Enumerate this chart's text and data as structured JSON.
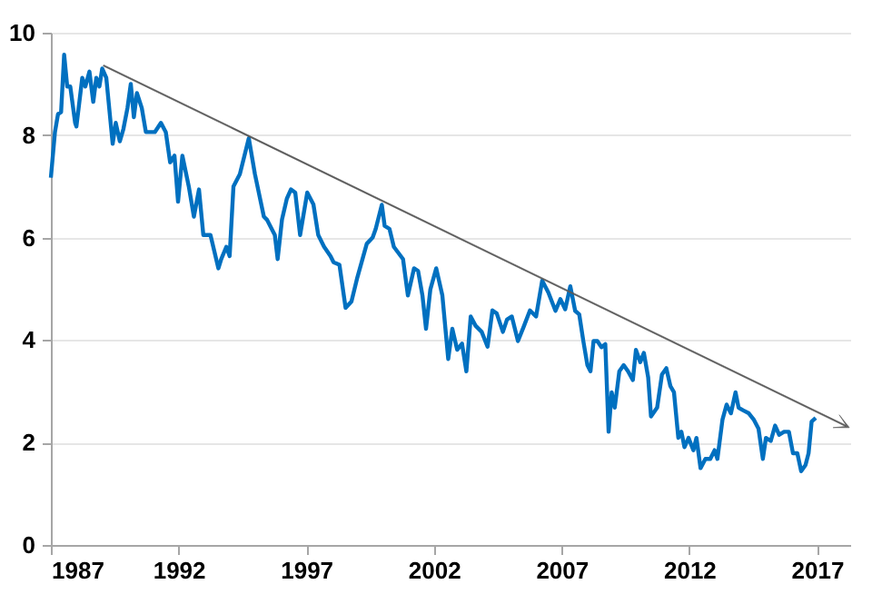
{
  "chart_data": {
    "type": "line",
    "xlim": [
      1987,
      2018.3
    ],
    "xticks": [
      1987,
      1992,
      1997,
      2002,
      2007,
      2012,
      2017
    ],
    "ylim": [
      0,
      10
    ],
    "yticks": [
      0,
      2,
      4,
      6,
      8,
      10
    ],
    "grid": "y",
    "series": [
      {
        "color": "#0070c0",
        "x": [
          1987.0,
          1987.16,
          1987.28,
          1987.4,
          1987.52,
          1987.64,
          1987.76,
          1987.95,
          1988.0,
          1988.23,
          1988.35,
          1988.51,
          1988.66,
          1988.78,
          1988.9,
          1989.01,
          1989.17,
          1989.42,
          1989.54,
          1989.7,
          1989.84,
          1990.0,
          1990.13,
          1990.25,
          1990.37,
          1990.56,
          1990.72,
          1991.07,
          1991.31,
          1991.5,
          1991.67,
          1991.84,
          1991.98,
          1992.15,
          1992.4,
          1992.6,
          1992.8,
          1992.97,
          1993.25,
          1993.56,
          1993.67,
          1993.87,
          1994.0,
          1994.15,
          1994.4,
          1994.75,
          1994.99,
          1995.34,
          1995.46,
          1995.77,
          1995.88,
          1996.05,
          1996.24,
          1996.4,
          1996.57,
          1996.76,
          1997.04,
          1997.28,
          1997.47,
          1997.7,
          1997.95,
          1998.07,
          1998.3,
          1998.54,
          1998.77,
          1999.0,
          1999.37,
          1999.6,
          1999.72,
          1999.96,
          2000.07,
          2000.26,
          2000.43,
          2000.79,
          2000.98,
          2001.22,
          2001.38,
          2001.55,
          2001.69,
          2001.86,
          2002.09,
          2002.33,
          2002.56,
          2002.72,
          2002.91,
          2003.1,
          2003.27,
          2003.44,
          2003.63,
          2003.87,
          2004.1,
          2004.29,
          2004.46,
          2004.7,
          2004.86,
          2005.05,
          2005.29,
          2005.53,
          2005.76,
          2006.0,
          2006.24,
          2006.48,
          2006.76,
          2006.95,
          2007.14,
          2007.34,
          2007.53,
          2007.69,
          2007.85,
          2008.01,
          2008.13,
          2008.25,
          2008.4,
          2008.56,
          2008.71,
          2008.84,
          2008.96,
          2009.08,
          2009.26,
          2009.43,
          2009.6,
          2009.79,
          2009.91,
          2010.08,
          2010.22,
          2010.39,
          2010.5,
          2010.74,
          2010.93,
          2011.1,
          2011.26,
          2011.4,
          2011.57,
          2011.69,
          2011.81,
          2011.97,
          2012.16,
          2012.28,
          2012.44,
          2012.63,
          2012.82,
          2012.99,
          2013.1,
          2013.3,
          2013.46,
          2013.63,
          2013.81,
          2013.93,
          2014.1,
          2014.33,
          2014.52,
          2014.71,
          2014.88,
          2015.0,
          2015.19,
          2015.36,
          2015.52,
          2015.71,
          2015.9,
          2016.06,
          2016.23,
          2016.38,
          2016.55,
          2016.67,
          2016.79,
          2016.95
        ],
        "values": [
          7.17,
          8.06,
          8.41,
          8.45,
          9.57,
          8.95,
          8.95,
          8.24,
          8.17,
          9.12,
          8.95,
          9.24,
          8.65,
          9.12,
          8.95,
          9.3,
          9.12,
          7.83,
          8.24,
          7.88,
          8.12,
          8.53,
          9.0,
          8.35,
          8.82,
          8.53,
          8.06,
          8.06,
          8.24,
          8.06,
          7.47,
          7.6,
          6.7,
          7.6,
          7.0,
          6.41,
          6.94,
          6.05,
          6.05,
          5.4,
          5.58,
          5.82,
          5.64,
          7.0,
          7.24,
          7.94,
          7.24,
          6.41,
          6.35,
          6.05,
          5.58,
          6.35,
          6.76,
          6.94,
          6.88,
          6.05,
          6.88,
          6.65,
          6.05,
          5.82,
          5.64,
          5.52,
          5.47,
          4.63,
          4.75,
          5.22,
          5.88,
          6.0,
          6.17,
          6.64,
          6.23,
          6.17,
          5.82,
          5.58,
          4.87,
          5.4,
          5.35,
          4.87,
          4.22,
          4.99,
          5.4,
          4.87,
          3.63,
          4.22,
          3.81,
          3.93,
          3.39,
          4.46,
          4.28,
          4.16,
          3.87,
          4.58,
          4.52,
          4.16,
          4.4,
          4.46,
          3.98,
          4.28,
          4.58,
          4.46,
          5.16,
          4.93,
          4.57,
          4.8,
          4.6,
          5.05,
          4.57,
          4.5,
          3.98,
          3.51,
          3.39,
          3.98,
          3.98,
          3.86,
          3.92,
          2.21,
          2.98,
          2.68,
          3.39,
          3.51,
          3.39,
          3.22,
          3.81,
          3.57,
          3.75,
          3.27,
          2.51,
          2.68,
          3.33,
          3.45,
          3.1,
          2.98,
          2.09,
          2.21,
          1.91,
          2.09,
          1.85,
          2.09,
          1.5,
          1.68,
          1.68,
          1.85,
          1.68,
          2.45,
          2.74,
          2.57,
          2.98,
          2.68,
          2.63,
          2.57,
          2.45,
          2.27,
          1.68,
          2.09,
          2.03,
          2.33,
          2.15,
          2.21,
          2.21,
          1.79,
          1.79,
          1.44,
          1.56,
          1.79,
          2.41,
          2.48
        ]
      }
    ]
  }
}
